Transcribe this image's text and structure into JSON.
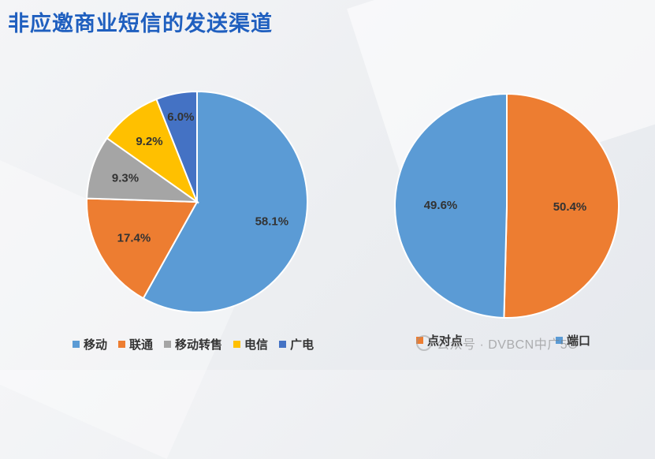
{
  "title": "非应邀商业短信的发送渠道",
  "watermark": "公众号 · DVBCN中广5G",
  "chart_data": [
    {
      "type": "pie",
      "title": "",
      "categories": [
        "移动",
        "联通",
        "移动转售",
        "电信",
        "广电"
      ],
      "values": [
        58.1,
        17.4,
        9.3,
        9.2,
        6.0
      ],
      "labels": [
        "58.1%",
        "17.4%",
        "9.3%",
        "9.2%",
        "6.0%"
      ],
      "colors": [
        "#5b9bd5",
        "#ed7d31",
        "#a5a5a5",
        "#ffc000",
        "#4472c4"
      ],
      "legend": "bottom"
    },
    {
      "type": "pie",
      "title": "",
      "categories": [
        "点对点",
        "端口"
      ],
      "values": [
        50.4,
        49.6
      ],
      "labels": [
        "50.4%",
        "49.6%"
      ],
      "colors": [
        "#ed7d31",
        "#5b9bd5"
      ],
      "legend": "bottom"
    }
  ]
}
